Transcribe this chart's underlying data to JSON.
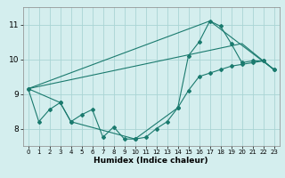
{
  "xlabel": "Humidex (Indice chaleur)",
  "background_color": "#d4eeee",
  "grid_color": "#aad4d4",
  "line_color": "#1a7a6e",
  "xlim": [
    -0.5,
    23.5
  ],
  "ylim": [
    7.5,
    11.5
  ],
  "yticks": [
    8,
    9,
    10,
    11
  ],
  "xticks": [
    0,
    1,
    2,
    3,
    4,
    5,
    6,
    7,
    8,
    9,
    10,
    11,
    12,
    13,
    14,
    15,
    16,
    17,
    18,
    19,
    20,
    21,
    22,
    23
  ],
  "line1_x": [
    0,
    1,
    2,
    3,
    4,
    5,
    6,
    7,
    8,
    9,
    10,
    11,
    12,
    13,
    14,
    15,
    16,
    17,
    18,
    19,
    20,
    21,
    22,
    23
  ],
  "line1_y": [
    9.15,
    8.2,
    8.55,
    8.75,
    8.2,
    8.4,
    8.55,
    7.75,
    8.05,
    7.7,
    7.7,
    7.75,
    8.0,
    8.2,
    8.6,
    9.1,
    9.5,
    9.6,
    9.7,
    9.8,
    9.85,
    9.9,
    9.95,
    9.7
  ],
  "line2_x": [
    0,
    3,
    4,
    10,
    14,
    15,
    16,
    17,
    18,
    19,
    20,
    21,
    22,
    23
  ],
  "line2_y": [
    9.15,
    8.75,
    8.2,
    7.7,
    8.6,
    10.1,
    10.5,
    11.1,
    10.95,
    10.45,
    9.9,
    9.95,
    9.95,
    9.7
  ],
  "line3_x": [
    0,
    17,
    23
  ],
  "line3_y": [
    9.15,
    11.1,
    9.7
  ],
  "line4_x": [
    0,
    20,
    23
  ],
  "line4_y": [
    9.15,
    10.45,
    9.7
  ]
}
